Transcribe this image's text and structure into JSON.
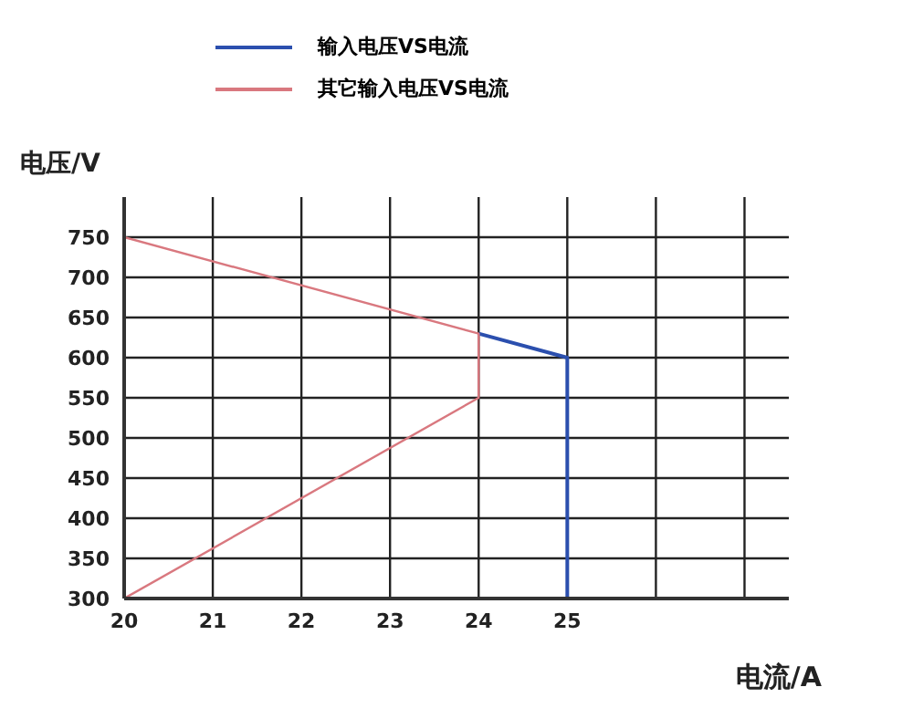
{
  "chart_data": {
    "type": "line",
    "xlabel": "电流/A",
    "ylabel": "电压/V",
    "xlim": [
      20,
      27.5
    ],
    "xticks": [
      20,
      21,
      22,
      23,
      24,
      25,
      {
        "value": 26,
        "label": null
      },
      {
        "value": 27,
        "label": null
      }
    ],
    "ylim": [
      300,
      800
    ],
    "yticks": [
      300,
      350,
      400,
      450,
      500,
      550,
      600,
      650,
      700,
      750
    ],
    "grid": true,
    "legend": "top",
    "marker": "none",
    "line_style": "solid",
    "series": [
      {
        "name": "输入电压VS电流",
        "color": "#2b4fae",
        "x": [
          24,
          25,
          25
        ],
        "values": [
          630,
          600,
          300
        ]
      },
      {
        "name": "其它输入电压VS电流",
        "color": "#d9787f",
        "x": [
          20,
          24,
          24,
          20
        ],
        "values": [
          750,
          630,
          550,
          300
        ]
      }
    ]
  }
}
